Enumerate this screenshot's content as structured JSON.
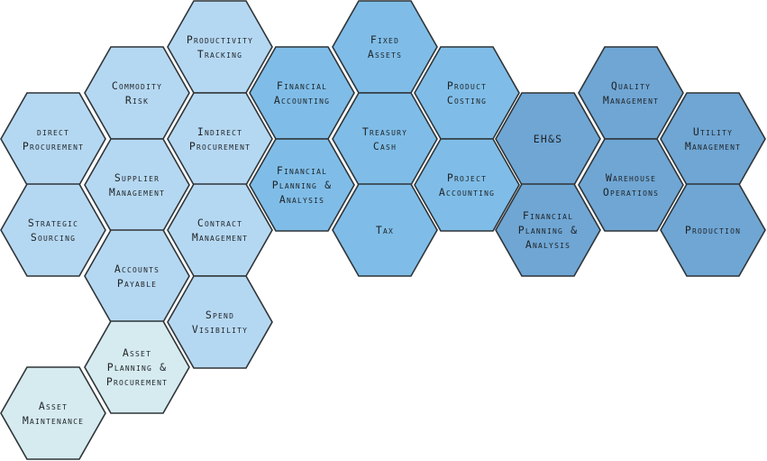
{
  "colors": {
    "procurement": "#b5d8f2",
    "finance": "#7fbde8",
    "operations": "#6fa6d4",
    "asset": "#d5ebf0",
    "stroke": "#2f3437",
    "text": "#1f2326"
  },
  "hexes": [
    {
      "id": "productivity-tracking",
      "lines": [
        "Productivity",
        "Tracking"
      ],
      "group": "procurement"
    },
    {
      "id": "commodity-risk",
      "lines": [
        "Commodity",
        "Risk"
      ],
      "group": "procurement"
    },
    {
      "id": "indirect-procurement",
      "lines": [
        "Indirect",
        "Procurement"
      ],
      "group": "procurement"
    },
    {
      "id": "direct-procurement",
      "lines": [
        "direct",
        "Procurement"
      ],
      "group": "procurement"
    },
    {
      "id": "supplier-management",
      "lines": [
        "Supplier",
        "Management"
      ],
      "group": "procurement"
    },
    {
      "id": "strategic-sourcing",
      "lines": [
        "Strategic",
        "Sourcing"
      ],
      "group": "procurement"
    },
    {
      "id": "contract-management",
      "lines": [
        "Contract",
        "Management"
      ],
      "group": "procurement"
    },
    {
      "id": "accounts-payable",
      "lines": [
        "Accounts",
        "Payable"
      ],
      "group": "procurement"
    },
    {
      "id": "spend-visibility",
      "lines": [
        "Spend",
        "Visibility"
      ],
      "group": "procurement"
    },
    {
      "id": "asset-planning-procurement",
      "lines": [
        "Asset",
        "Planning &",
        "Procurement"
      ],
      "group": "asset"
    },
    {
      "id": "asset-maintenance",
      "lines": [
        "Asset",
        "Maintenance"
      ],
      "group": "asset"
    },
    {
      "id": "financial-accounting",
      "lines": [
        "Financial",
        "Accounting"
      ],
      "group": "finance"
    },
    {
      "id": "financial-planning-analysis-1",
      "lines": [
        "Financial",
        "Planning &",
        "Analysis"
      ],
      "group": "finance"
    },
    {
      "id": "fixed-assets",
      "lines": [
        "Fixed",
        "Assets"
      ],
      "group": "finance"
    },
    {
      "id": "treasury-cash",
      "lines": [
        "Treasury",
        "Cash"
      ],
      "group": "finance"
    },
    {
      "id": "tax",
      "lines": [
        "Tax"
      ],
      "group": "finance"
    },
    {
      "id": "product-costing",
      "lines": [
        "Product",
        "Costing"
      ],
      "group": "finance"
    },
    {
      "id": "project-accounting",
      "lines": [
        "Project",
        "Accounting"
      ],
      "group": "finance"
    },
    {
      "id": "ehs",
      "lines": [
        "EH&S"
      ],
      "group": "operations"
    },
    {
      "id": "financial-planning-analysis-2",
      "lines": [
        "Financial",
        "Planning &",
        "Analysis"
      ],
      "group": "operations"
    },
    {
      "id": "quality-management",
      "lines": [
        "Quality",
        "Management"
      ],
      "group": "operations"
    },
    {
      "id": "warehouse-operations",
      "lines": [
        "Warehouse",
        "Operations"
      ],
      "group": "operations"
    },
    {
      "id": "utility-management",
      "lines": [
        "Utility",
        "Management"
      ],
      "group": "operations"
    },
    {
      "id": "production",
      "lines": [
        "Production"
      ],
      "group": "operations"
    }
  ]
}
